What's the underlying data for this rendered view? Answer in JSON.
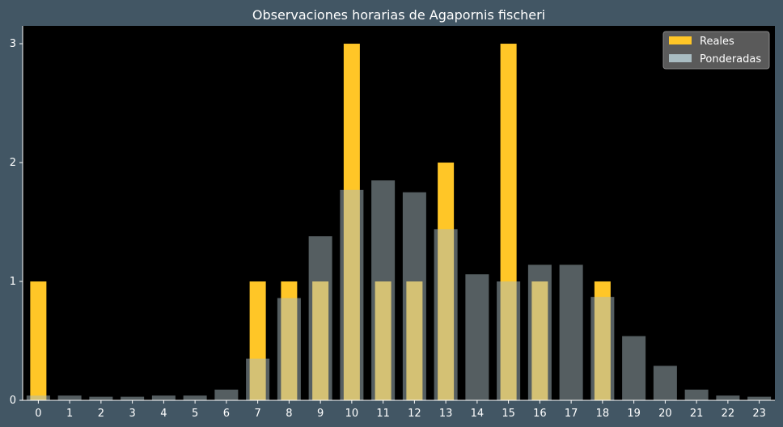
{
  "chart_data": {
    "type": "bar",
    "title": "Observaciones horarias de Agapornis fischeri",
    "xlabel": "",
    "ylabel": "",
    "categories": [
      "0",
      "1",
      "2",
      "3",
      "4",
      "5",
      "6",
      "7",
      "8",
      "9",
      "10",
      "11",
      "12",
      "13",
      "14",
      "15",
      "16",
      "17",
      "18",
      "19",
      "20",
      "21",
      "22",
      "23"
    ],
    "ylim": [
      0,
      3.15
    ],
    "yticks": [
      "0",
      "1",
      "2",
      "3"
    ],
    "series": [
      {
        "name": "Reales",
        "color": "#ffc627",
        "values": [
          1,
          0,
          0,
          0,
          0,
          0,
          0,
          1,
          1,
          1,
          3,
          1,
          1,
          2,
          0,
          3,
          1,
          0,
          1,
          0,
          0,
          0,
          0,
          0
        ]
      },
      {
        "name": "Ponderadas",
        "color": "#a9bcc2",
        "opacity": 0.5,
        "values": [
          0.04,
          0.04,
          0.03,
          0.03,
          0.04,
          0.04,
          0.09,
          0.35,
          0.86,
          1.38,
          1.77,
          1.85,
          1.75,
          1.44,
          1.06,
          1.0,
          1.14,
          1.14,
          0.87,
          0.54,
          0.29,
          0.09,
          0.04,
          0.03
        ]
      }
    ],
    "legend": "top-right",
    "grid": false
  }
}
